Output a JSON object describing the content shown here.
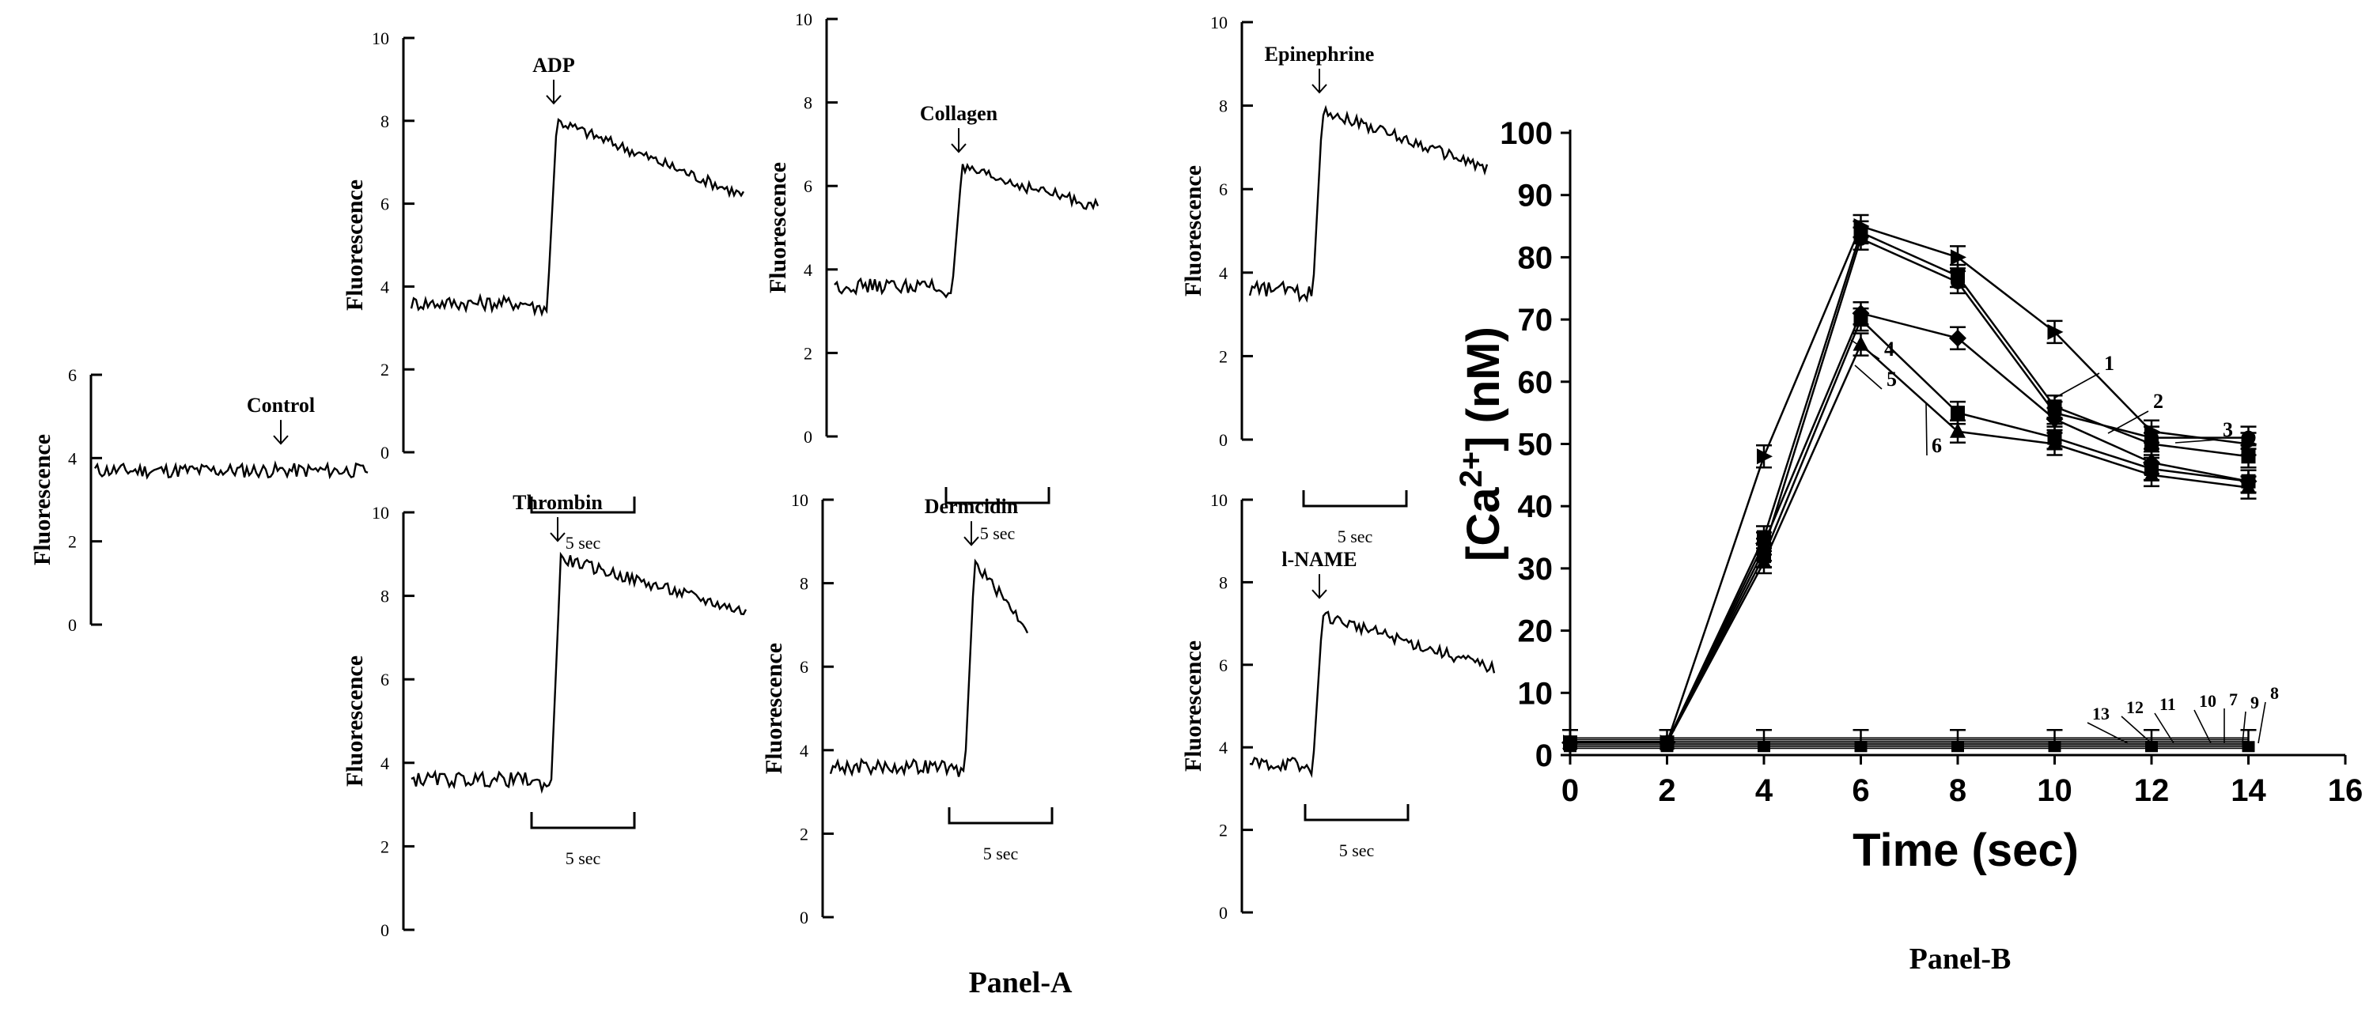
{
  "figure": {
    "panel_a_label": "Panel-A",
    "panel_b_label": "Panel-B",
    "scale_bar_label": "5 sec"
  },
  "chart_data": [
    {
      "type": "line",
      "title": "Control",
      "ylabel": "Fluorescence",
      "ylim": [
        0,
        6
      ],
      "yticks": [
        0,
        2,
        4,
        6
      ],
      "annotation": "Control",
      "trace": {
        "baseline": 3.7,
        "peak": null,
        "end": 3.65
      }
    },
    {
      "type": "line",
      "title": "ADP",
      "ylabel": "Fluorescence",
      "ylim": [
        0,
        10
      ],
      "yticks": [
        0,
        2,
        4,
        6,
        8,
        10
      ],
      "annotation": "ADP",
      "scale_bar": "5 sec",
      "trace": {
        "baseline": 3.6,
        "peak": 8.0,
        "end": 6.2
      }
    },
    {
      "type": "line",
      "title": "Collagen",
      "ylabel": "Fluorescence",
      "ylim": [
        0,
        10
      ],
      "yticks": [
        0,
        2,
        4,
        6,
        8,
        10
      ],
      "annotation": "Collagen",
      "scale_bar": "5 sec",
      "trace": {
        "baseline": 3.6,
        "peak": 6.4,
        "end": 5.5
      }
    },
    {
      "type": "line",
      "title": "Epinephrine",
      "ylabel": "Fluorescence",
      "ylim": [
        0,
        10
      ],
      "yticks": [
        0,
        2,
        4,
        6,
        8,
        10
      ],
      "annotation": "Epinephrine",
      "scale_bar": "5 sec",
      "trace": {
        "baseline": 3.6,
        "peak": 7.9,
        "end": 6.5
      }
    },
    {
      "type": "line",
      "title": "Thrombin",
      "ylabel": "Fluorescence",
      "ylim": [
        0,
        10
      ],
      "yticks": [
        0,
        2,
        4,
        6,
        8,
        10
      ],
      "annotation": "Thrombin",
      "scale_bar": "5 sec",
      "trace": {
        "baseline": 3.6,
        "peak": 8.9,
        "end": 7.6
      }
    },
    {
      "type": "line",
      "title": "Dermcidin",
      "ylabel": "Fluorescence",
      "ylim": [
        0,
        10
      ],
      "yticks": [
        0,
        2,
        4,
        6,
        8,
        10
      ],
      "annotation": "Dermcidin",
      "scale_bar": "5 sec",
      "trace": {
        "baseline": 3.6,
        "peak": 8.5,
        "end": 6.9
      }
    },
    {
      "type": "line",
      "title": "l-NAME",
      "ylabel": "Fluorescence",
      "ylim": [
        0,
        10
      ],
      "yticks": [
        0,
        2,
        4,
        6,
        8,
        10
      ],
      "annotation": "l-NAME",
      "scale_bar": "5 sec",
      "trace": {
        "baseline": 3.6,
        "peak": 7.2,
        "end": 5.9
      }
    },
    {
      "type": "line",
      "xlabel": "Time (sec)",
      "ylabel": "[Ca2+] (nM)",
      "ylabel_base": "[Ca",
      "ylabel_sup": "2+",
      "ylabel_rest": "] (nM)",
      "xlim": [
        0,
        16
      ],
      "ylim": [
        0,
        100
      ],
      "xticks": [
        0,
        2,
        4,
        6,
        8,
        10,
        12,
        14,
        16
      ],
      "yticks": [
        0,
        10,
        20,
        30,
        40,
        50,
        60,
        70,
        80,
        90,
        100
      ],
      "x": [
        0,
        2,
        4,
        6,
        8,
        10,
        12,
        14
      ],
      "series": [
        {
          "name": "1",
          "values": [
            2,
            2,
            48,
            85,
            80,
            68,
            52,
            50
          ]
        },
        {
          "name": "2",
          "values": [
            2,
            2,
            35,
            84,
            77,
            56,
            50,
            48
          ]
        },
        {
          "name": "3",
          "values": [
            2,
            2,
            33,
            83,
            76,
            55,
            51,
            51
          ]
        },
        {
          "name": "4",
          "values": [
            2,
            2,
            34,
            71,
            67,
            54,
            47,
            44
          ]
        },
        {
          "name": "5",
          "values": [
            2,
            2,
            32,
            70,
            55,
            51,
            46,
            44
          ]
        },
        {
          "name": "6",
          "values": [
            2,
            2,
            31,
            66,
            52,
            50,
            45,
            43
          ]
        },
        {
          "name": "7",
          "values": [
            2,
            2,
            2,
            2,
            2,
            2,
            2,
            2
          ]
        },
        {
          "name": "8",
          "values": [
            2,
            2,
            2,
            2,
            2,
            2,
            2,
            2
          ]
        },
        {
          "name": "9",
          "values": [
            2,
            2,
            2,
            2,
            2,
            2,
            2,
            2
          ]
        },
        {
          "name": "10",
          "values": [
            2,
            2,
            2,
            2,
            2,
            2,
            2,
            2
          ]
        },
        {
          "name": "11",
          "values": [
            2,
            2,
            2,
            2,
            2,
            2,
            2,
            2
          ]
        },
        {
          "name": "12",
          "values": [
            2,
            2,
            2,
            2,
            2,
            2,
            2,
            2
          ]
        },
        {
          "name": "13",
          "values": [
            2,
            2,
            2,
            2,
            2,
            2,
            2,
            2
          ]
        }
      ]
    }
  ]
}
